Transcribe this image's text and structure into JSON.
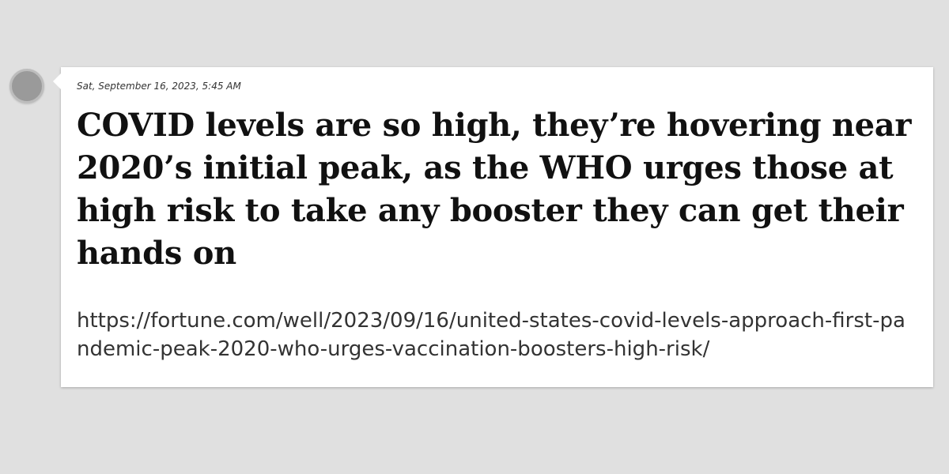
{
  "post": {
    "timestamp": "Sat, September 16, 2023, 5:45 AM",
    "headline": "COVID levels are so high, they’re hovering near 2020’s initial peak, as the WHO urges those at high risk to take any booster they can get their hands on",
    "url": "https://fortune.com/well/2023/09/16/united-states-covid-levels-approach-first-pandemic-peak-2020-who-urges-vaccination-boosters-high-risk/"
  },
  "colors": {
    "background": "#e0e0e0",
    "card": "#ffffff",
    "avatar": "#9a9a9a",
    "text": "#111111"
  }
}
